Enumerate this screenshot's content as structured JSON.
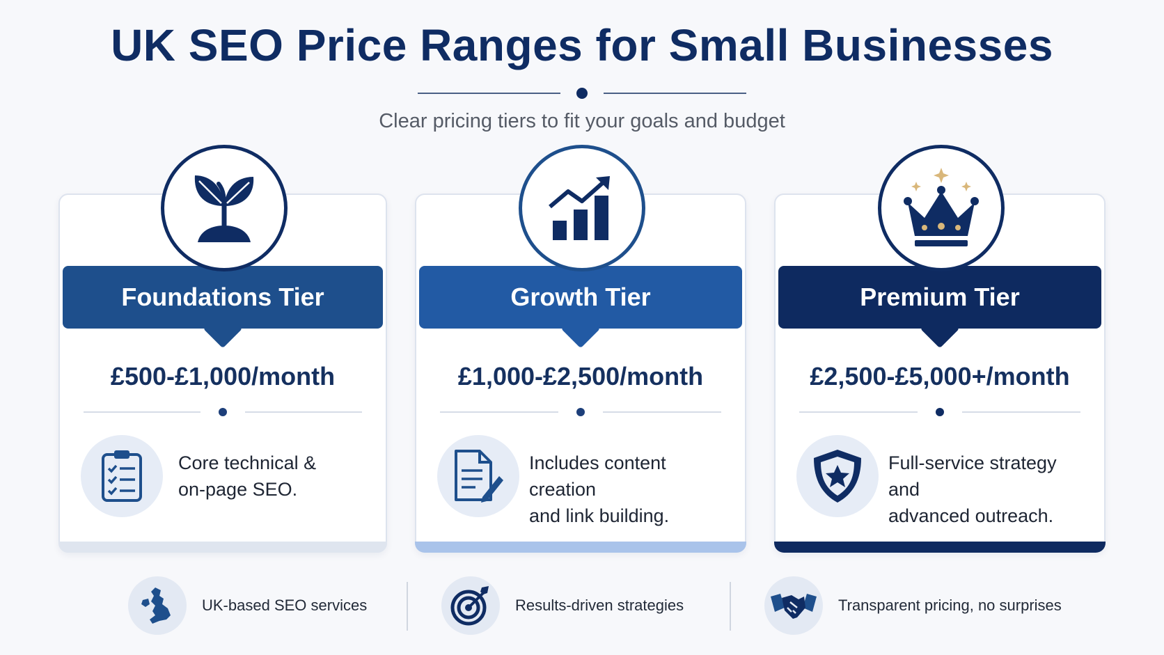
{
  "header": {
    "title": "UK SEO Price Ranges for Small Businesses",
    "subtitle": "Clear pricing tiers to fit your goals and budget"
  },
  "colors": {
    "navy": "#0f2c63",
    "foundations_banner": "#1e4f8c",
    "growth_banner": "#225aa4",
    "premium_banner": "#0e2a60",
    "gold_accent": "#d9b77a"
  },
  "tiers": [
    {
      "name": "Foundations Tier",
      "price": "£500-£1,000/month",
      "description_line1": "Core technical &",
      "description_line2": "on-page SEO.",
      "icon": "sprout-icon",
      "feature_icon": "checklist-icon"
    },
    {
      "name": "Growth Tier",
      "price": "£1,000-£2,500/month",
      "description_line1": "Includes content creation",
      "description_line2": "and link building.",
      "icon": "growth-chart-icon",
      "feature_icon": "document-pen-icon"
    },
    {
      "name": "Premium Tier",
      "price": "£2,500-£5,000+/month",
      "description_line1": "Full-service strategy and",
      "description_line2": "advanced outreach.",
      "icon": "crown-icon",
      "feature_icon": "shield-star-icon"
    }
  ],
  "footer": [
    {
      "text": "UK-based SEO services",
      "icon": "uk-map-icon"
    },
    {
      "text": "Results-driven strategies",
      "icon": "target-icon"
    },
    {
      "text": "Transparent pricing, no surprises",
      "icon": "handshake-icon"
    }
  ]
}
